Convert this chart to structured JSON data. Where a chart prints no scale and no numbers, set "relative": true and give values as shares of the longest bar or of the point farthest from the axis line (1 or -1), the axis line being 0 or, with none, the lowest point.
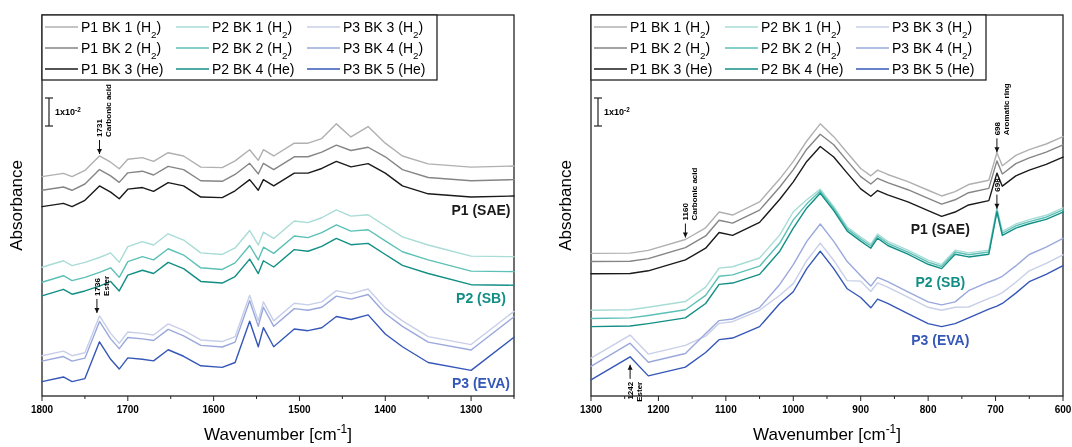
{
  "chart_data": [
    {
      "type": "line",
      "relative": true,
      "line_style": "solid",
      "legend": "top left",
      "xlabel": "Wavenumber [cm$^{-1}$]",
      "ylabel": "Absorbance",
      "xlim": [
        1800,
        1250
      ],
      "xticks": [
        1800,
        {
          "value": 1750,
          "label": null
        },
        1700,
        {
          "value": 1650,
          "label": null
        },
        1600,
        {
          "value": 1550,
          "label": null
        },
        1500,
        {
          "value": 1450,
          "label": null
        },
        1400,
        {
          "value": 1350,
          "label": null
        },
        1300,
        {
          "value": 1250,
          "label": null
        }
      ],
      "x": [
        1800,
        1775,
        1765,
        1750,
        1733,
        1720,
        1710,
        1700,
        1683,
        1670,
        1653,
        1635,
        1615,
        1590,
        1575,
        1558,
        1548,
        1542,
        1530,
        1506,
        1490,
        1474,
        1457,
        1440,
        1420,
        1400,
        1380,
        1350,
        1300,
        1250
      ],
      "annotations": [
        "1x10$^{-2}$",
        {
          "text": "1731\nCarbonic acid",
          "x": 1733,
          "y": 0.882
        },
        {
          "text": "1736\nEster",
          "x": 1736,
          "y": 0.298
        },
        "P1 (SAE)",
        "P2 (SB)",
        "P3 (EVA)"
      ],
      "series": [
        {
          "name": "P1 BK 1 (H$_{2}$)",
          "color": "#b0b0b0",
          "values": [
            0.806,
            0.818,
            0.806,
            0.829,
            0.882,
            0.859,
            0.835,
            0.87,
            0.876,
            0.862,
            0.894,
            0.882,
            0.841,
            0.839,
            0.864,
            0.905,
            0.866,
            0.905,
            0.882,
            0.929,
            0.929,
            0.946,
            1.0,
            0.952,
            0.99,
            0.929,
            0.882,
            0.853,
            0.841,
            0.845
          ]
        },
        {
          "name": "P1 BK 2 (H$_{2}$)",
          "color": "#858585",
          "values": [
            0.756,
            0.768,
            0.756,
            0.779,
            0.832,
            0.809,
            0.785,
            0.82,
            0.826,
            0.812,
            0.844,
            0.832,
            0.791,
            0.789,
            0.814,
            0.855,
            0.816,
            0.855,
            0.832,
            0.879,
            0.879,
            0.896,
            0.922,
            0.902,
            0.914,
            0.879,
            0.832,
            0.803,
            0.791,
            0.795
          ]
        },
        {
          "name": "P1 BK 3 (He)",
          "color": "#1a1a1a",
          "values": [
            0.696,
            0.708,
            0.696,
            0.719,
            0.772,
            0.749,
            0.725,
            0.76,
            0.766,
            0.752,
            0.784,
            0.772,
            0.731,
            0.729,
            0.754,
            0.795,
            0.756,
            0.795,
            0.772,
            0.819,
            0.819,
            0.836,
            0.862,
            0.842,
            0.854,
            0.819,
            0.772,
            0.743,
            0.731,
            0.735
          ]
        },
        {
          "name": "P2 BK 1 (H$_{2}$)",
          "color": "#a8dcd6",
          "values": [
            0.473,
            0.497,
            0.479,
            0.491,
            0.509,
            0.526,
            0.491,
            0.549,
            0.567,
            0.555,
            0.596,
            0.573,
            0.526,
            0.52,
            0.544,
            0.608,
            0.555,
            0.602,
            0.579,
            0.643,
            0.637,
            0.655,
            0.684,
            0.661,
            0.666,
            0.625,
            0.585,
            0.555,
            0.514,
            0.512
          ]
        },
        {
          "name": "P2 BK 2 (H$_{2}$)",
          "color": "#5cc0b6",
          "values": [
            0.418,
            0.442,
            0.424,
            0.436,
            0.454,
            0.471,
            0.436,
            0.494,
            0.512,
            0.5,
            0.541,
            0.518,
            0.471,
            0.465,
            0.489,
            0.553,
            0.5,
            0.547,
            0.524,
            0.588,
            0.582,
            0.6,
            0.629,
            0.606,
            0.611,
            0.57,
            0.53,
            0.5,
            0.459,
            0.457
          ]
        },
        {
          "name": "P2 BK 4 (He)",
          "color": "#128f85",
          "values": [
            0.368,
            0.392,
            0.374,
            0.386,
            0.404,
            0.421,
            0.386,
            0.444,
            0.462,
            0.45,
            0.491,
            0.468,
            0.421,
            0.415,
            0.439,
            0.503,
            0.45,
            0.497,
            0.474,
            0.538,
            0.532,
            0.55,
            0.579,
            0.556,
            0.561,
            0.52,
            0.48,
            0.45,
            0.409,
            0.407
          ]
        },
        {
          "name": "P3 BK 3 (H$_{2}$)",
          "color": "#c8cfe8",
          "values": [
            0.148,
            0.165,
            0.148,
            0.159,
            0.294,
            0.23,
            0.194,
            0.235,
            0.23,
            0.224,
            0.265,
            0.241,
            0.206,
            0.2,
            0.218,
            0.37,
            0.276,
            0.346,
            0.276,
            0.341,
            0.335,
            0.346,
            0.387,
            0.376,
            0.393,
            0.323,
            0.276,
            0.218,
            0.189,
            0.311
          ]
        },
        {
          "name": "P3 BK 4 (H$_{2}$)",
          "color": "#9aa8dc",
          "values": [
            0.128,
            0.145,
            0.128,
            0.139,
            0.274,
            0.21,
            0.174,
            0.215,
            0.21,
            0.204,
            0.245,
            0.221,
            0.186,
            0.18,
            0.198,
            0.35,
            0.256,
            0.326,
            0.256,
            0.321,
            0.315,
            0.326,
            0.367,
            0.356,
            0.373,
            0.303,
            0.256,
            0.198,
            0.169,
            0.291
          ]
        },
        {
          "name": "P3 BK 5 (He)",
          "color": "#3557b7",
          "values": [
            0.053,
            0.07,
            0.053,
            0.064,
            0.199,
            0.135,
            0.099,
            0.14,
            0.135,
            0.129,
            0.17,
            0.146,
            0.111,
            0.105,
            0.123,
            0.275,
            0.181,
            0.251,
            0.181,
            0.246,
            0.24,
            0.251,
            0.292,
            0.281,
            0.298,
            0.228,
            0.181,
            0.123,
            0.094,
            0.216
          ]
        }
      ]
    },
    {
      "type": "line",
      "relative": true,
      "line_style": "solid",
      "legend": "top left",
      "xlabel": "Wavenumber [cm$^{-1}$]",
      "ylabel": "Absorbance",
      "xlim": [
        1300,
        600
      ],
      "xticks": [
        1300,
        {
          "value": 1250,
          "label": null
        },
        1200,
        {
          "value": 1150,
          "label": null
        },
        1100,
        {
          "value": 1050,
          "label": null
        },
        1000,
        {
          "value": 950,
          "label": null
        },
        900,
        {
          "value": 850,
          "label": null
        },
        800,
        {
          "value": 750,
          "label": null
        },
        700,
        {
          "value": 650,
          "label": null
        },
        600
      ],
      "x": [
        1300,
        1242,
        1215,
        1160,
        1130,
        1110,
        1090,
        1050,
        1020,
        1000,
        980,
        960,
        940,
        920,
        900,
        885,
        875,
        860,
        830,
        800,
        780,
        760,
        740,
        710,
        698,
        690,
        670,
        650,
        625,
        600
      ],
      "annotations": [
        "1x10$^{-2}$",
        {
          "text": "1160\nCarbonic acid",
          "x": 1160,
          "y": 0.575
        },
        {
          "text": "698\nAromatic ring",
          "x": 698,
          "y": 0.888
        },
        {
          "text": "698",
          "x": 698,
          "y": 0.681
        },
        {
          "text": "1242\nEster",
          "x": 1242,
          "y": 0.122
        },
        "P1 (SAE)",
        "P2 (SB)",
        "P3 (EVA)"
      ],
      "series": [
        {
          "name": "P1 BK 1 (H$_{2}$)",
          "color": "#b0b0b0",
          "values": [
            0.524,
            0.525,
            0.535,
            0.575,
            0.618,
            0.676,
            0.665,
            0.713,
            0.798,
            0.862,
            0.937,
            1.0,
            0.953,
            0.894,
            0.836,
            0.809,
            0.83,
            0.814,
            0.788,
            0.756,
            0.735,
            0.751,
            0.777,
            0.793,
            0.894,
            0.846,
            0.884,
            0.905,
            0.926,
            0.953
          ]
        },
        {
          "name": "P1 BK 2 (H$_{2}$)",
          "color": "#858585",
          "values": [
            0.494,
            0.495,
            0.505,
            0.545,
            0.588,
            0.646,
            0.635,
            0.683,
            0.768,
            0.832,
            0.907,
            0.962,
            0.923,
            0.864,
            0.806,
            0.779,
            0.8,
            0.784,
            0.758,
            0.726,
            0.705,
            0.721,
            0.747,
            0.763,
            0.864,
            0.816,
            0.854,
            0.875,
            0.896,
            0.923
          ]
        },
        {
          "name": "P1 BK 3 (He)",
          "color": "#1a1a1a",
          "values": [
            0.449,
            0.45,
            0.46,
            0.5,
            0.543,
            0.601,
            0.59,
            0.638,
            0.723,
            0.787,
            0.862,
            0.917,
            0.878,
            0.819,
            0.761,
            0.734,
            0.755,
            0.739,
            0.713,
            0.681,
            0.66,
            0.676,
            0.702,
            0.718,
            0.819,
            0.771,
            0.809,
            0.83,
            0.851,
            0.878
          ]
        },
        {
          "name": "P2 BK 1 (H$_{2}$)",
          "color": "#a8dcd6",
          "values": [
            0.315,
            0.317,
            0.326,
            0.347,
            0.4,
            0.47,
            0.475,
            0.507,
            0.592,
            0.677,
            0.721,
            0.76,
            0.696,
            0.621,
            0.584,
            0.558,
            0.595,
            0.568,
            0.536,
            0.499,
            0.483,
            0.536,
            0.526,
            0.536,
            0.691,
            0.605,
            0.632,
            0.648,
            0.664,
            0.691
          ]
        },
        {
          "name": "P2 BK 2 (H$_{2}$)",
          "color": "#5cc0b6",
          "values": [
            0.285,
            0.287,
            0.296,
            0.317,
            0.37,
            0.44,
            0.445,
            0.477,
            0.562,
            0.647,
            0.706,
            0.753,
            0.689,
            0.614,
            0.577,
            0.551,
            0.588,
            0.561,
            0.529,
            0.492,
            0.476,
            0.529,
            0.519,
            0.529,
            0.684,
            0.598,
            0.625,
            0.641,
            0.657,
            0.684
          ]
        },
        {
          "name": "P2 BK 4 (He)",
          "color": "#128f85",
          "values": [
            0.255,
            0.257,
            0.266,
            0.287,
            0.34,
            0.41,
            0.415,
            0.447,
            0.532,
            0.617,
            0.691,
            0.745,
            0.681,
            0.606,
            0.569,
            0.543,
            0.58,
            0.553,
            0.521,
            0.484,
            0.468,
            0.521,
            0.511,
            0.521,
            0.676,
            0.59,
            0.617,
            0.633,
            0.649,
            0.676
          ]
        },
        {
          "name": "P3 BK 3 (H$_{2}$)",
          "color": "#c8cfe8",
          "values": [
            0.139,
            0.224,
            0.154,
            0.186,
            0.22,
            0.267,
            0.273,
            0.315,
            0.37,
            0.413,
            0.498,
            0.562,
            0.498,
            0.424,
            0.422,
            0.384,
            0.416,
            0.4,
            0.363,
            0.326,
            0.315,
            0.326,
            0.327,
            0.359,
            0.37,
            0.38,
            0.418,
            0.46,
            0.487,
            0.519
          ]
        },
        {
          "name": "P3 BK 4 (H$_{2}$)",
          "color": "#9aa8dc",
          "values": [
            0.109,
            0.194,
            0.124,
            0.156,
            0.23,
            0.277,
            0.283,
            0.325,
            0.41,
            0.483,
            0.568,
            0.632,
            0.568,
            0.494,
            0.442,
            0.404,
            0.436,
            0.42,
            0.383,
            0.346,
            0.335,
            0.346,
            0.387,
            0.419,
            0.43,
            0.44,
            0.478,
            0.52,
            0.547,
            0.579
          ]
        },
        {
          "name": "P3 BK 5 (He)",
          "color": "#3557b7",
          "values": [
            0.059,
            0.144,
            0.074,
            0.106,
            0.16,
            0.207,
            0.213,
            0.255,
            0.34,
            0.383,
            0.468,
            0.532,
            0.468,
            0.394,
            0.362,
            0.324,
            0.356,
            0.34,
            0.303,
            0.266,
            0.255,
            0.266,
            0.287,
            0.319,
            0.33,
            0.34,
            0.378,
            0.42,
            0.447,
            0.479
          ]
        }
      ]
    }
  ]
}
